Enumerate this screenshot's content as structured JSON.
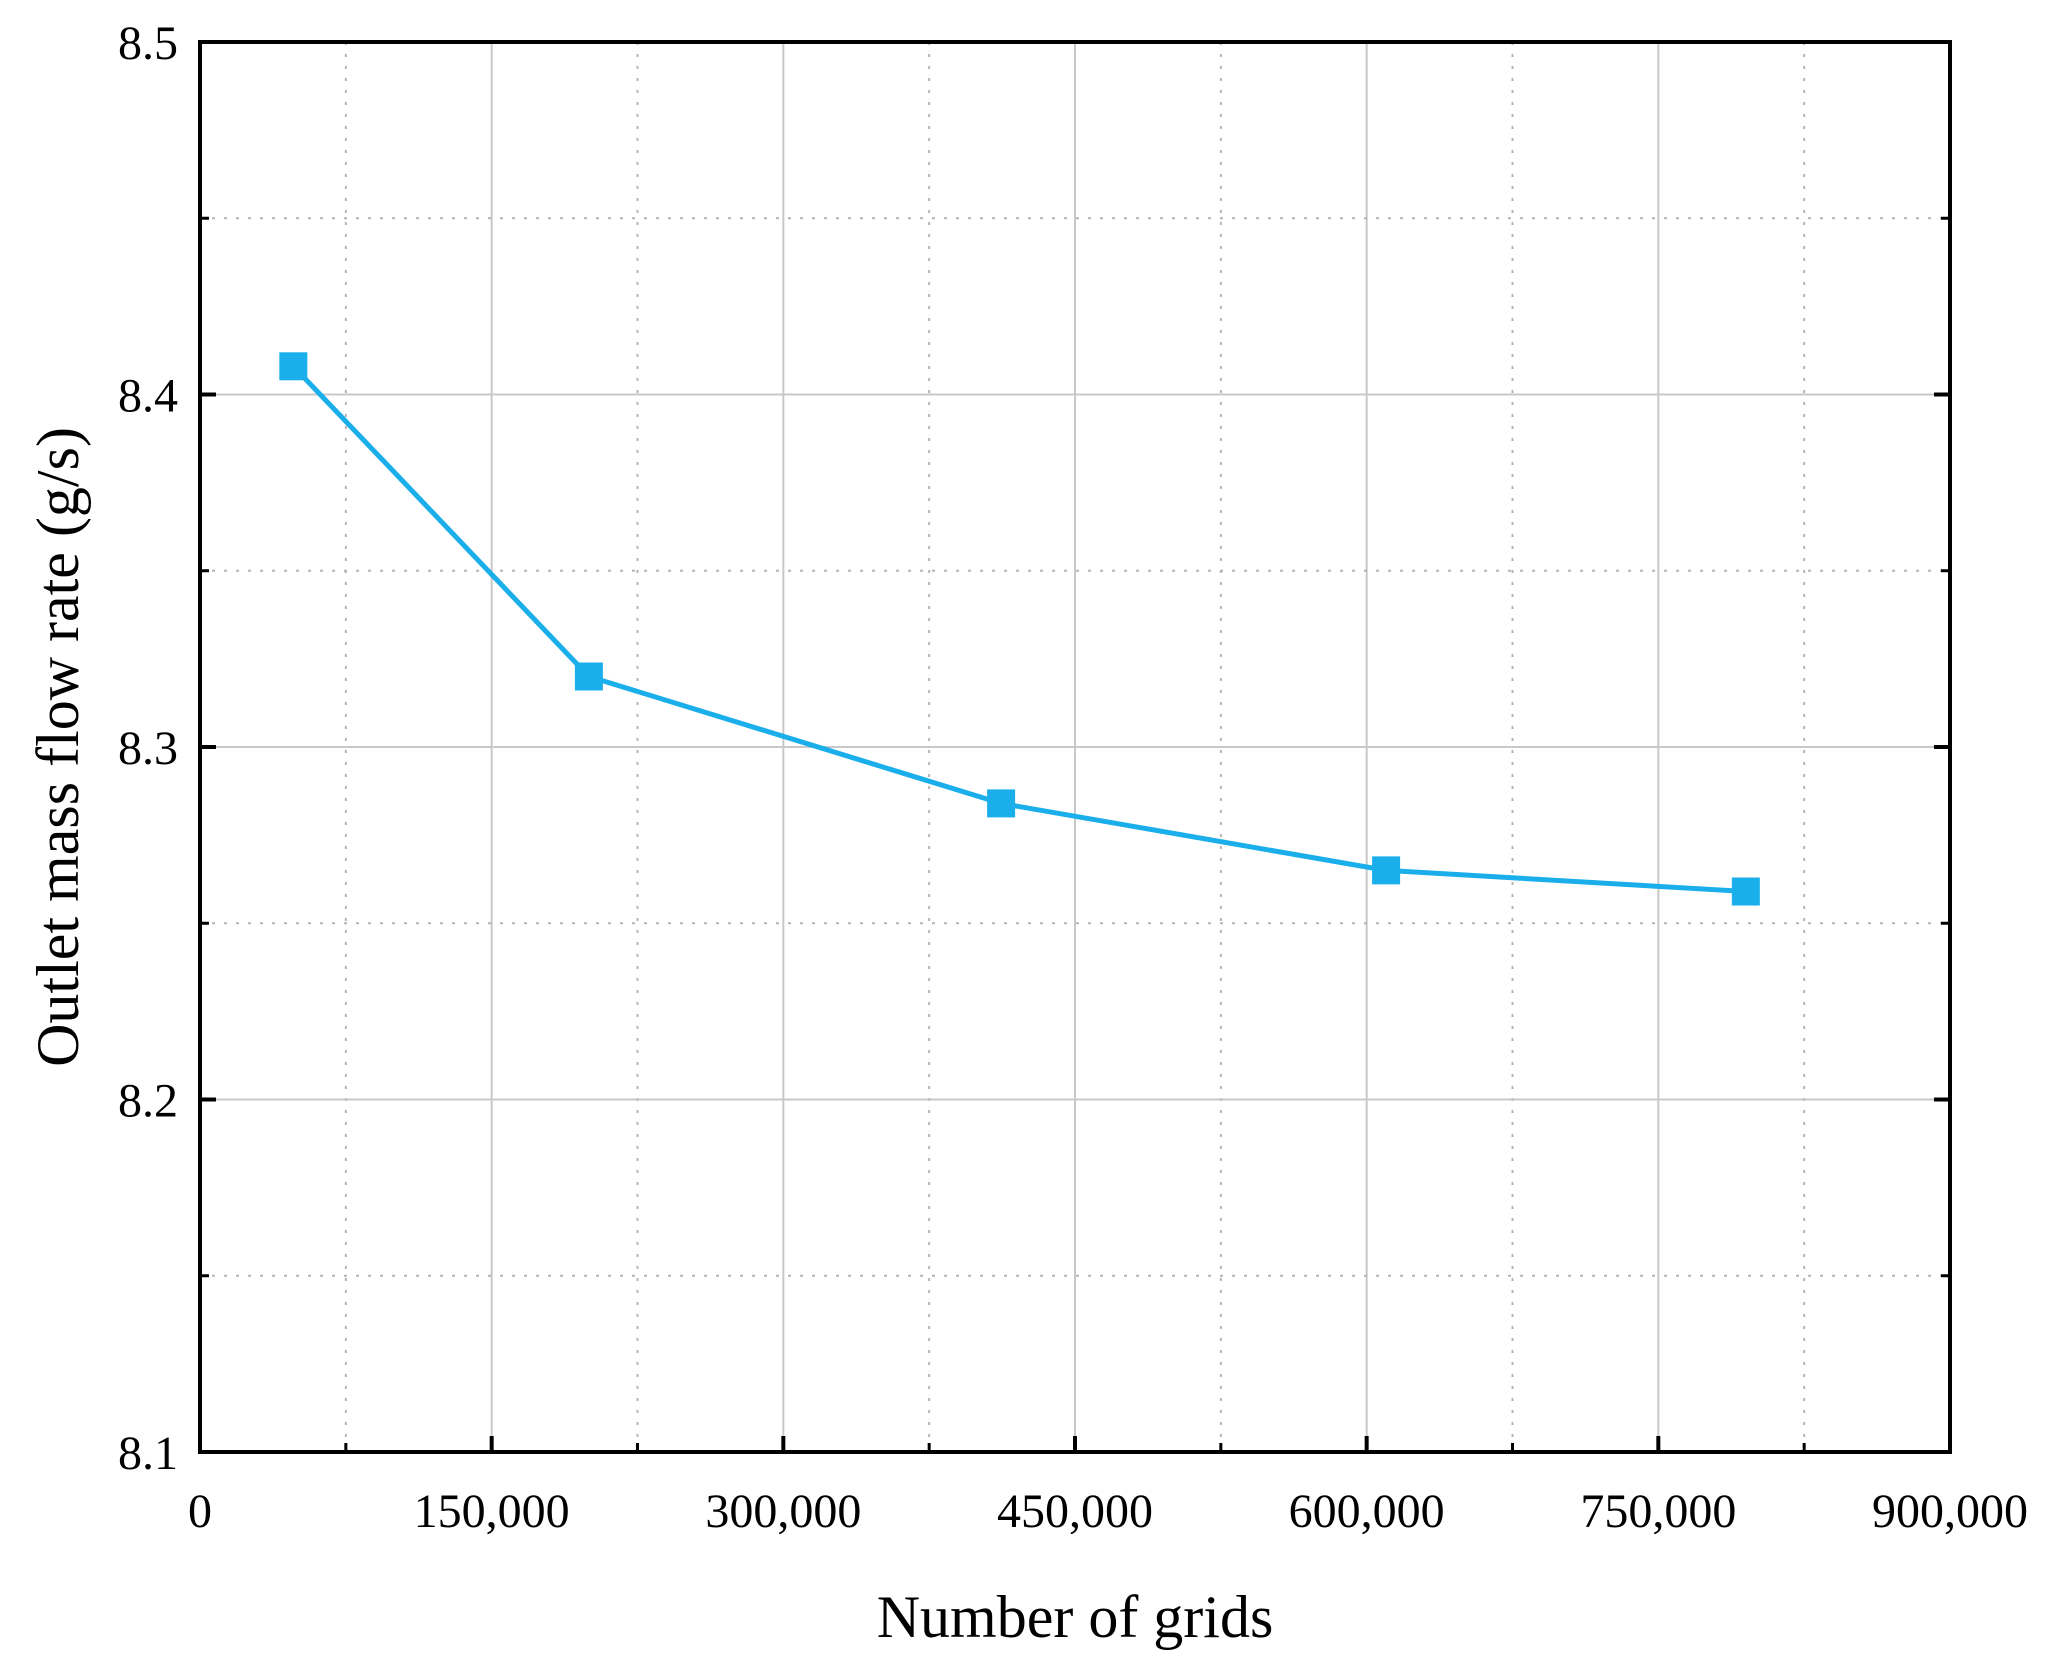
{
  "chart_data": {
    "type": "line",
    "title": "",
    "xlabel": "Number of grids",
    "ylabel": "Outlet mass flow rate (g/s)",
    "xlim": [
      0,
      900000
    ],
    "ylim": [
      8.1,
      8.5
    ],
    "x_ticks": [
      0,
      150000,
      300000,
      450000,
      600000,
      750000,
      900000
    ],
    "x_tick_labels": [
      "0",
      "150,000",
      "300,000",
      "450,000",
      "600,000",
      "750,000",
      "900,000"
    ],
    "y_ticks": [
      8.1,
      8.2,
      8.3,
      8.4,
      8.5
    ],
    "y_tick_labels": [
      "8.1",
      "8.2",
      "8.3",
      "8.4",
      "8.5"
    ],
    "grid": true,
    "series": [
      {
        "color": "#1aaeea",
        "marker": "square",
        "x": [
          48000,
          200000,
          412000,
          610000,
          795000
        ],
        "y": [
          8.408,
          8.32,
          8.284,
          8.265,
          8.259
        ]
      }
    ]
  }
}
